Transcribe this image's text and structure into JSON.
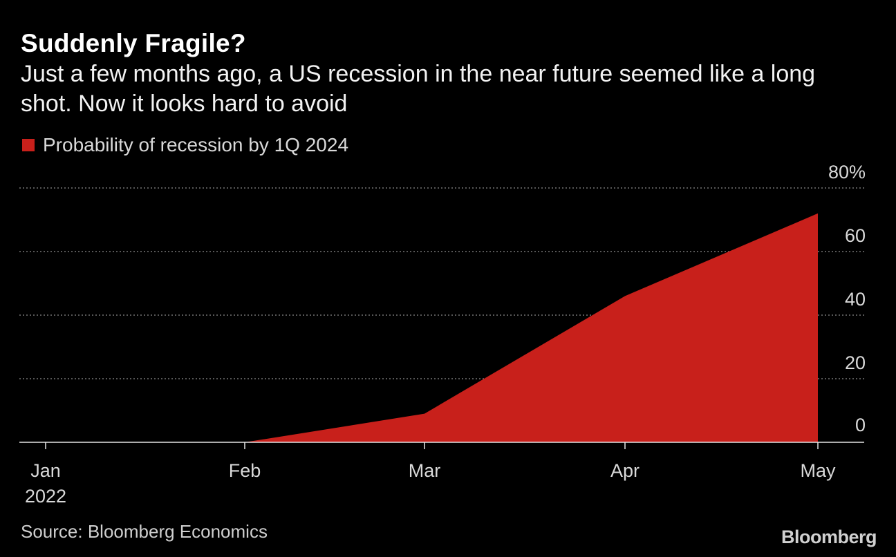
{
  "chart_data": {
    "type": "area",
    "title": "Suddenly Fragile?",
    "subtitle": "Just a few months ago, a US recession in the near future seemed like a long shot. Now it looks hard to avoid",
    "series": [
      {
        "name": "Probability of recession by 1Q 2024",
        "color": "#c8201b",
        "x": [
          "Feb",
          "Mar",
          "Apr",
          "May"
        ],
        "values": [
          0,
          9,
          46,
          72
        ]
      }
    ],
    "x_ticks": [
      "Jan",
      "Feb",
      "Mar",
      "Apr",
      "May"
    ],
    "x_year_label": "2022",
    "y_ticks": [
      "0",
      "20",
      "40",
      "60",
      "80%"
    ],
    "y_tick_values": [
      0,
      20,
      40,
      60,
      80
    ],
    "ylim": [
      0,
      80
    ],
    "grid": true,
    "source": "Source: Bloomberg Economics",
    "brand": "Bloomberg"
  }
}
